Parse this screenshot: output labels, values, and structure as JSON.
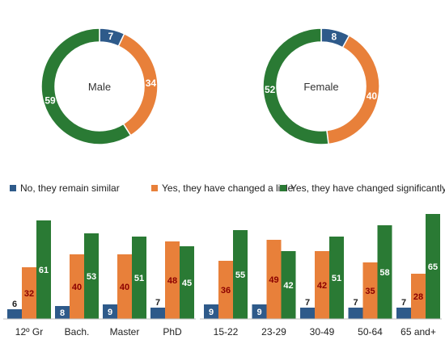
{
  "colors": {
    "no": "#2e5a8a",
    "little": "#e8803a",
    "significant": "#2a7a34"
  },
  "legend": [
    {
      "key": "no",
      "label": "No, they remain similar"
    },
    {
      "key": "little",
      "label": "Yes, they have changed a little"
    },
    {
      "key": "significant",
      "label": "Yes, they have changed significantly"
    }
  ],
  "chart_data": [
    {
      "type": "pie",
      "center_label": "Male",
      "labels": [
        "No, they remain similar",
        "Yes, they have changed a little",
        "Yes, they have changed significantly"
      ],
      "values": [
        7,
        34,
        59
      ]
    },
    {
      "type": "pie",
      "center_label": "Female",
      "labels": [
        "No, they remain similar",
        "Yes, they have changed a little",
        "Yes, they have changed significantly"
      ],
      "values": [
        8,
        40,
        52
      ]
    },
    {
      "type": "bar",
      "categories": [
        "12º Gr",
        "Bach.",
        "Master",
        "PhD"
      ],
      "series": [
        {
          "name": "No, they remain similar",
          "values": [
            6,
            8,
            9,
            7
          ]
        },
        {
          "name": "Yes, they have changed a little",
          "values": [
            32,
            40,
            40,
            48
          ]
        },
        {
          "name": "Yes, they have changed significantly",
          "values": [
            61,
            53,
            51,
            45
          ]
        }
      ],
      "ylim": [
        0,
        70
      ]
    },
    {
      "type": "bar",
      "categories": [
        "15-22",
        "23-29",
        "30-49",
        "50-64",
        "65 and+"
      ],
      "series": [
        {
          "name": "No, they remain similar",
          "values": [
            9,
            9,
            7,
            7,
            7
          ]
        },
        {
          "name": "Yes, they have changed a little",
          "values": [
            36,
            49,
            42,
            35,
            28
          ]
        },
        {
          "name": "Yes, they have changed significantly",
          "values": [
            55,
            42,
            51,
            58,
            65
          ]
        }
      ],
      "ylim": [
        0,
        70
      ]
    }
  ]
}
